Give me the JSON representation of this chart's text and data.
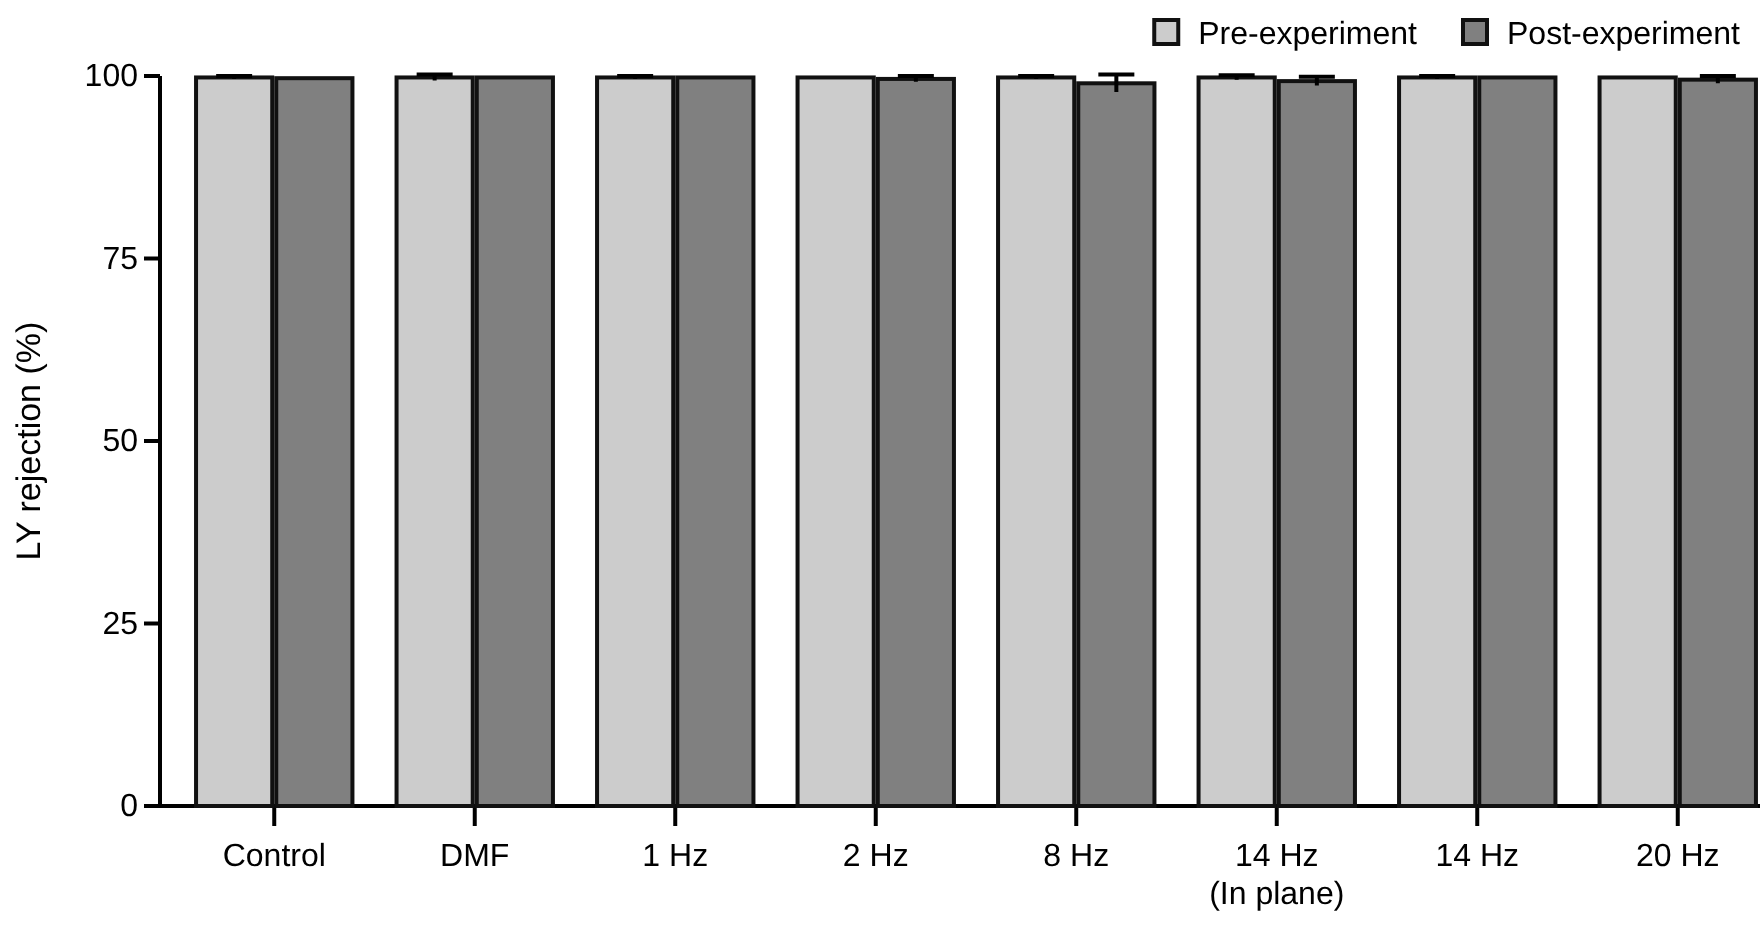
{
  "chart_data": {
    "type": "bar",
    "ylabel": "LY rejection (%)",
    "categories": [
      "Control",
      "DMF",
      "1 Hz",
      "2 Hz",
      "8 Hz",
      "14 Hz\n(In plane)",
      "14 Hz",
      "20 Hz"
    ],
    "series": [
      {
        "name": "Pre-experiment",
        "color": "#cccccc",
        "values": [
          99.8,
          99.8,
          99.8,
          99.8,
          99.8,
          99.8,
          99.8,
          99.8
        ],
        "errors": [
          0.2,
          0.4,
          0.2,
          null,
          0.2,
          0.3,
          0.2,
          null
        ]
      },
      {
        "name": "Post-experiment",
        "color": "#808080",
        "values": [
          99.7,
          99.8,
          99.8,
          99.6,
          99.0,
          99.3,
          99.8,
          99.5
        ],
        "errors": [
          null,
          null,
          null,
          0.4,
          1.2,
          0.6,
          null,
          0.5
        ]
      }
    ],
    "ylim": [
      0,
      100
    ],
    "yticks": [
      0,
      25,
      50,
      75,
      100
    ],
    "grid": false,
    "legend": "top right"
  }
}
